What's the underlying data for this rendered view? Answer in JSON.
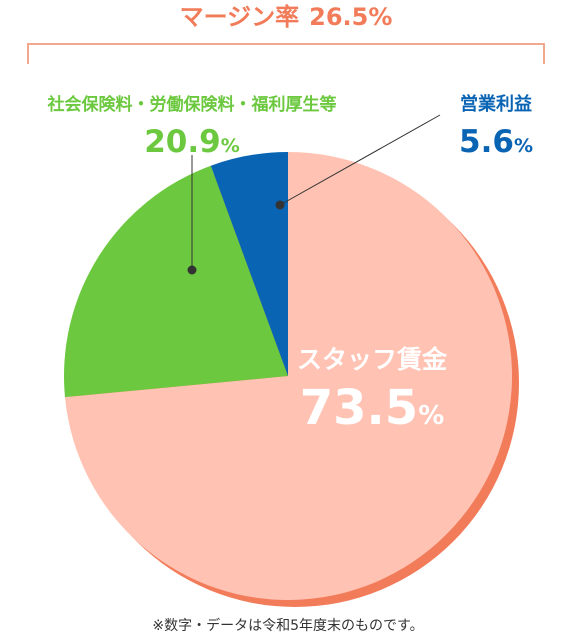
{
  "chart_data": {
    "type": "pie",
    "slices": [
      {
        "label": "スタッフ賃金",
        "value": 73.5,
        "pct_text": "73.5",
        "color": "#FFC2B3"
      },
      {
        "label": "社会保険料・労働保険料・福利厚生等",
        "value": 20.9,
        "pct_text": "20.9",
        "color": "#6CC93F"
      },
      {
        "label": "営業利益",
        "value": 5.6,
        "pct_text": "5.6",
        "color": "#0A64B4"
      }
    ],
    "percent_sign": "%",
    "bracket": {
      "label": "マージン率",
      "value": "26.5",
      "color": "#F27C5A"
    },
    "footnote": "※数字・データは令和5年度末のものです。",
    "colors": {
      "shadow": "#F27C5A",
      "bracket_line": "#F0A98F",
      "white": "#FFFFFF",
      "dark": "#333333"
    }
  }
}
